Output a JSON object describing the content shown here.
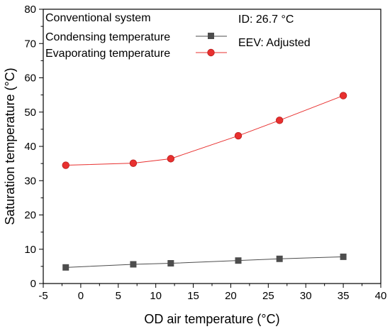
{
  "chart_data": {
    "type": "line",
    "xlabel": "OD air temperature (°C)",
    "ylabel": "Saturation temperature (°C)",
    "xlim": [
      -5,
      40
    ],
    "ylim": [
      0,
      80
    ],
    "x_ticks": [
      "-5",
      "0",
      "5",
      "10",
      "15",
      "20",
      "25",
      "30",
      "35",
      "40"
    ],
    "y_ticks": [
      "0",
      "10",
      "20",
      "30",
      "40",
      "50",
      "60",
      "70",
      "80"
    ],
    "grid": false,
    "legend": {
      "placement": "top-left",
      "title": "Conventional system"
    },
    "annotations": [
      "ID: 26.7 °C",
      "EEV: Adjusted"
    ],
    "series": [
      {
        "name": "Condensing temperature",
        "marker": "square",
        "color": "#4d4d4d",
        "x": [
          -2,
          7,
          12,
          21,
          26.5,
          35
        ],
        "values": [
          4.7,
          5.6,
          5.9,
          6.7,
          7.2,
          7.8
        ]
      },
      {
        "name": "Evaporating temperature",
        "marker": "circle",
        "color": "#e8302f",
        "x": [
          -2,
          7,
          12,
          21,
          26.5,
          35
        ],
        "values": [
          34.5,
          35.1,
          36.4,
          43.1,
          47.6,
          54.8
        ]
      }
    ]
  }
}
